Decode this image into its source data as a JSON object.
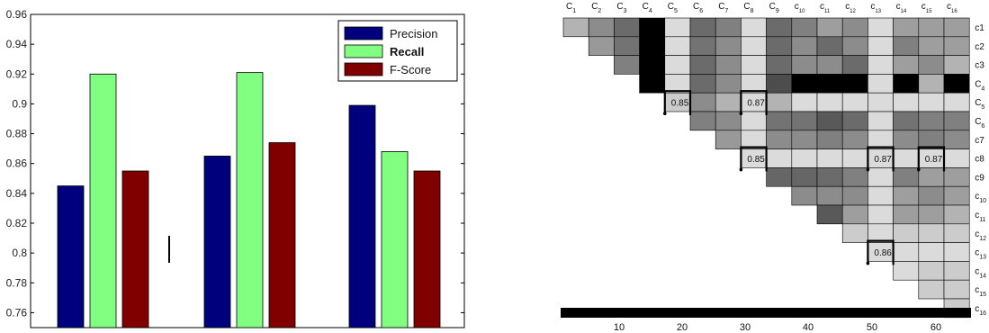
{
  "chart_data": [
    {
      "type": "bar",
      "title": "",
      "xlabel": "",
      "ylabel": "",
      "ylim": [
        0.75,
        0.96
      ],
      "yticks": [
        "0.76",
        "0.78",
        "0.8",
        "0.82",
        "0.84",
        "0.86",
        "0.88",
        "0.9",
        "0.92",
        "0.94",
        "0.96"
      ],
      "categories": [
        "",
        "",
        ""
      ],
      "legend_position": "top-right",
      "series": [
        {
          "name": "Precision",
          "color": "#00007f",
          "values": [
            0.845,
            0.865,
            0.899
          ]
        },
        {
          "name": "Recall",
          "color": "#80ff80",
          "values": [
            0.92,
            0.921,
            0.868
          ]
        },
        {
          "name": "F-Score",
          "color": "#800000",
          "values": [
            0.855,
            0.874,
            0.855
          ]
        }
      ]
    },
    {
      "type": "heatmap",
      "title": "",
      "col_labels": [
        {
          "base": "C",
          "sub": "1"
        },
        {
          "base": "C",
          "sub": "2"
        },
        {
          "base": "C",
          "sub": "3"
        },
        {
          "base": "C",
          "sub": "4"
        },
        {
          "base": "C",
          "sub": "5"
        },
        {
          "base": "C",
          "sub": "6"
        },
        {
          "base": "C",
          "sub": "7"
        },
        {
          "base": "C",
          "sub": "8"
        },
        {
          "base": "C",
          "sub": "9"
        },
        {
          "base": "c",
          "sub": "10"
        },
        {
          "base": "c",
          "sub": "11"
        },
        {
          "base": "c",
          "sub": "12"
        },
        {
          "base": "c",
          "sub": "13"
        },
        {
          "base": "c",
          "sub": "14"
        },
        {
          "base": "c",
          "sub": "15"
        },
        {
          "base": "c",
          "sub": "16"
        }
      ],
      "row_labels": [
        {
          "base": "c1",
          "sub": ""
        },
        {
          "base": "c2",
          "sub": ""
        },
        {
          "base": "c3",
          "sub": ""
        },
        {
          "base": "C",
          "sub": "4"
        },
        {
          "base": "C",
          "sub": "5"
        },
        {
          "base": "C",
          "sub": "6"
        },
        {
          "base": "c7",
          "sub": ""
        },
        {
          "base": "c8",
          "sub": ""
        },
        {
          "base": "c9",
          "sub": ""
        },
        {
          "base": "c",
          "sub": "10"
        },
        {
          "base": "c",
          "sub": "11"
        },
        {
          "base": "c",
          "sub": "12"
        },
        {
          "base": "c",
          "sub": "13"
        },
        {
          "base": "c",
          "sub": "14"
        },
        {
          "base": "c",
          "sub": "15"
        },
        {
          "base": "c",
          "sub": "16"
        }
      ],
      "grey_levels": [
        [
          0.7,
          0.55,
          0.42,
          0.0,
          0.86,
          0.42,
          0.5,
          0.86,
          0.42,
          0.5,
          0.62,
          0.55,
          0.86,
          0.62,
          0.62,
          0.62
        ],
        [
          null,
          0.6,
          0.45,
          0.0,
          0.86,
          0.45,
          0.55,
          0.86,
          0.42,
          0.55,
          0.42,
          0.55,
          0.86,
          0.5,
          0.62,
          0.62
        ],
        [
          null,
          null,
          0.5,
          0.0,
          0.86,
          0.42,
          0.55,
          0.86,
          0.42,
          0.55,
          0.55,
          0.42,
          0.86,
          0.62,
          0.55,
          0.7
        ],
        [
          null,
          null,
          null,
          0.0,
          0.86,
          0.42,
          0.55,
          0.86,
          0.3,
          0.0,
          0.0,
          0.0,
          0.86,
          0.0,
          0.7,
          0.0
        ],
        [
          null,
          null,
          null,
          null,
          0.8,
          0.55,
          0.7,
          0.86,
          0.7,
          0.86,
          0.86,
          0.86,
          0.86,
          0.86,
          0.86,
          0.86
        ],
        [
          null,
          null,
          null,
          null,
          null,
          0.5,
          0.55,
          0.86,
          0.45,
          0.45,
          0.35,
          0.42,
          0.86,
          0.45,
          0.5,
          0.5
        ],
        [
          null,
          null,
          null,
          null,
          null,
          null,
          0.6,
          0.86,
          0.55,
          0.55,
          0.5,
          0.55,
          0.86,
          0.55,
          0.5,
          0.55
        ],
        [
          null,
          null,
          null,
          null,
          null,
          null,
          null,
          0.86,
          0.86,
          0.86,
          0.86,
          0.86,
          0.86,
          0.86,
          0.86,
          0.86
        ],
        [
          null,
          null,
          null,
          null,
          null,
          null,
          null,
          null,
          0.4,
          0.4,
          0.42,
          0.5,
          0.86,
          0.5,
          0.62,
          0.62
        ],
        [
          null,
          null,
          null,
          null,
          null,
          null,
          null,
          null,
          null,
          0.55,
          0.55,
          0.55,
          0.86,
          0.62,
          0.55,
          0.62
        ],
        [
          null,
          null,
          null,
          null,
          null,
          null,
          null,
          null,
          null,
          null,
          0.35,
          0.62,
          0.86,
          0.62,
          0.62,
          0.7
        ],
        [
          null,
          null,
          null,
          null,
          null,
          null,
          null,
          null,
          null,
          null,
          null,
          0.8,
          0.86,
          0.8,
          0.8,
          0.8
        ],
        [
          null,
          null,
          null,
          null,
          null,
          null,
          null,
          null,
          null,
          null,
          null,
          null,
          0.86,
          0.86,
          0.86,
          0.86
        ],
        [
          null,
          null,
          null,
          null,
          null,
          null,
          null,
          null,
          null,
          null,
          null,
          null,
          null,
          0.86,
          0.8,
          0.8
        ],
        [
          null,
          null,
          null,
          null,
          null,
          null,
          null,
          null,
          null,
          null,
          null,
          null,
          null,
          null,
          0.8,
          0.8
        ],
        [
          null,
          null,
          null,
          null,
          null,
          null,
          null,
          null,
          null,
          null,
          null,
          null,
          null,
          null,
          null,
          0.8
        ]
      ],
      "annotations": [
        {
          "row": 4,
          "col": 4,
          "text": "0.85"
        },
        {
          "row": 4,
          "col": 7,
          "text": "0.87"
        },
        {
          "row": 7,
          "col": 7,
          "text": "0.85"
        },
        {
          "row": 7,
          "col": 12,
          "text": "0.87"
        },
        {
          "row": 7,
          "col": 14,
          "text": "0.87"
        },
        {
          "row": 12,
          "col": 12,
          "text": "0.86"
        }
      ],
      "colorbar_ticks": [
        "10",
        "20",
        "30",
        "40",
        "50",
        "60"
      ]
    }
  ]
}
